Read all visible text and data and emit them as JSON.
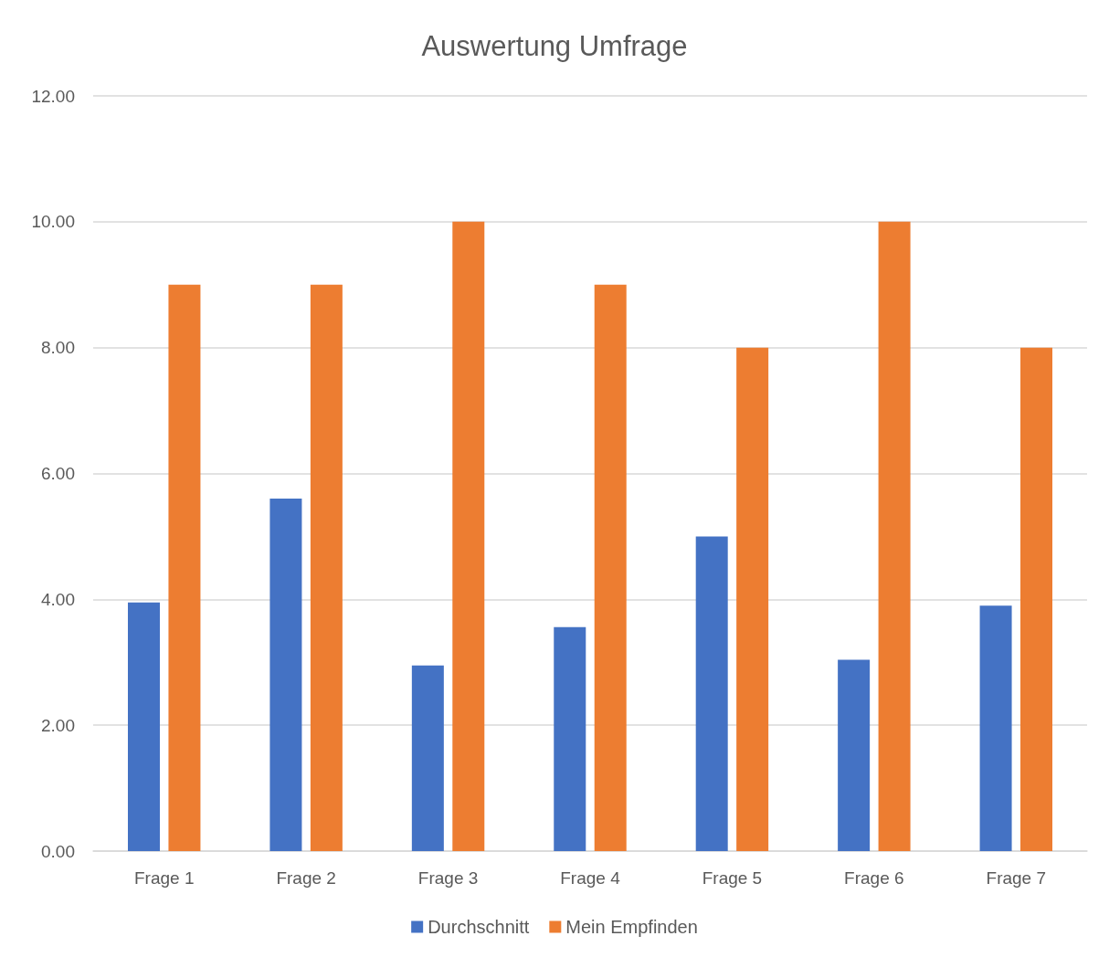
{
  "chart_data": {
    "type": "bar",
    "title": "Auswertung Umfrage",
    "categories": [
      "Frage 1",
      "Frage 2",
      "Frage 3",
      "Frage 4",
      "Frage 5",
      "Frage 6",
      "Frage 7"
    ],
    "series": [
      {
        "name": "Durchschnitt",
        "color": "#4472c4",
        "values": [
          3.95,
          5.6,
          2.95,
          3.56,
          5.0,
          3.04,
          3.9
        ]
      },
      {
        "name": "Mein Empfinden",
        "color": "#ed7d31",
        "values": [
          9,
          9,
          10,
          9,
          8,
          10,
          8
        ]
      }
    ],
    "ylim": [
      0,
      12
    ],
    "yticks": [
      {
        "value": 0,
        "label": "0.00"
      },
      {
        "value": 2,
        "label": "2.00"
      },
      {
        "value": 4,
        "label": "4.00"
      },
      {
        "value": 6,
        "label": "6.00"
      },
      {
        "value": 8,
        "label": "8.00"
      },
      {
        "value": 10,
        "label": "10.00"
      },
      {
        "value": 12,
        "label": "12.00"
      }
    ],
    "grid": "y",
    "legend": "bottom"
  }
}
